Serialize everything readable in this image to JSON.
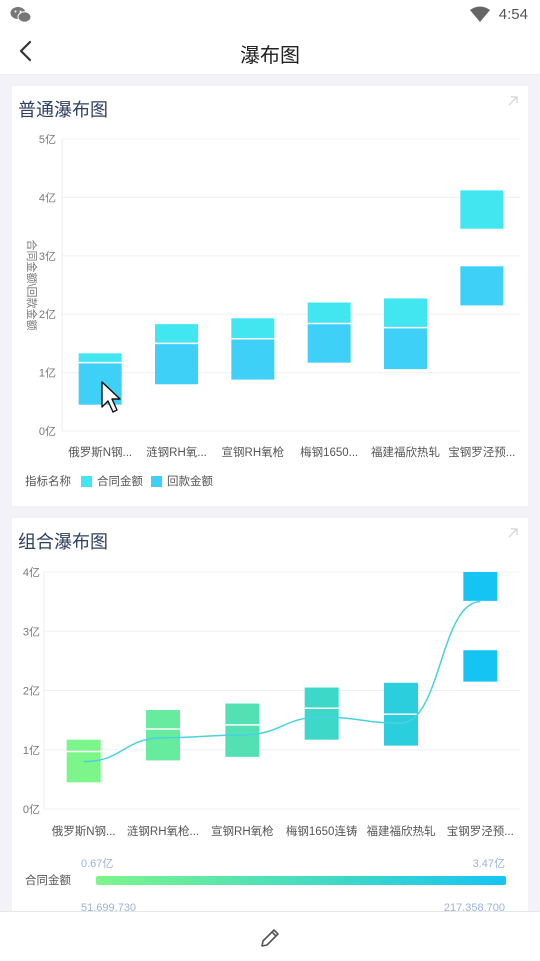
{
  "status": {
    "time": "4:54"
  },
  "appbar": {
    "title": "瀑布图"
  },
  "card1": {
    "title": "普通瀑布图",
    "ylabel": "合同金额\\回款金额",
    "legend_title": "指标名称",
    "legend": [
      "合同金额",
      "回款金额"
    ]
  },
  "card2": {
    "title": "组合瀑布图",
    "scale_label": "合同金额",
    "scale_top_min": "0.67亿",
    "scale_top_max": "3.47亿",
    "scale_bottom_min": "51,699,730",
    "scale_bottom_max": "217,358,700"
  },
  "colors": {
    "contract": "#42e6f0",
    "payment": "#3fd0f8",
    "grad_start": "#7cf58a",
    "grad_end": "#15c4f2",
    "line": "#48d2df"
  },
  "chart_data": [
    {
      "type": "bar",
      "subtype": "waterfall",
      "title": "普通瀑布图",
      "ylabel": "合同金额\\回款金额",
      "ylim": [
        0,
        5
      ],
      "y_ticks": [
        "0亿",
        "1亿",
        "2亿",
        "3亿",
        "4亿",
        "5亿"
      ],
      "categories": [
        "俄罗斯N钢...",
        "涟钢RH氧...",
        "宣钢RH氧枪",
        "梅钢1650...",
        "福建福欣热轧",
        "宝钢罗泾预..."
      ],
      "series": [
        {
          "name": "合同金额",
          "ranges": [
            [
              1.17,
              1.33
            ],
            [
              1.5,
              1.83
            ],
            [
              1.58,
              1.93
            ],
            [
              1.84,
              2.2
            ],
            [
              1.77,
              2.27
            ],
            [
              3.45,
              4.12
            ]
          ]
        },
        {
          "name": "回款金额",
          "ranges": [
            [
              0.45,
              1.17
            ],
            [
              0.8,
              1.5
            ],
            [
              0.88,
              1.58
            ],
            [
              1.17,
              1.84
            ],
            [
              1.06,
              1.77
            ],
            [
              2.15,
              2.82
            ]
          ]
        }
      ]
    },
    {
      "type": "bar",
      "subtype": "waterfall",
      "title": "组合瀑布图",
      "ylim": [
        0,
        4
      ],
      "y_ticks": [
        "0亿",
        "1亿",
        "2亿",
        "3亿",
        "4亿"
      ],
      "categories": [
        "俄罗斯N钢...",
        "涟钢RH氧枪...",
        "宣钢RH氧枪",
        "梅钢1650连铸",
        "福建福欣热轧",
        "宝钢罗泾预..."
      ],
      "ranges_upper": [
        [
          0.97,
          1.17
        ],
        [
          1.35,
          1.67
        ],
        [
          1.42,
          1.78
        ],
        [
          1.7,
          2.05
        ],
        [
          1.6,
          2.13
        ],
        [
          3.5,
          4.0
        ]
      ],
      "ranges_lower": [
        [
          0.45,
          0.97
        ],
        [
          0.82,
          1.35
        ],
        [
          0.88,
          1.42
        ],
        [
          1.17,
          1.7
        ],
        [
          1.07,
          1.6
        ],
        [
          2.15,
          2.68
        ]
      ],
      "line": [
        0.8,
        1.2,
        1.25,
        1.55,
        1.45,
        3.5
      ]
    }
  ]
}
